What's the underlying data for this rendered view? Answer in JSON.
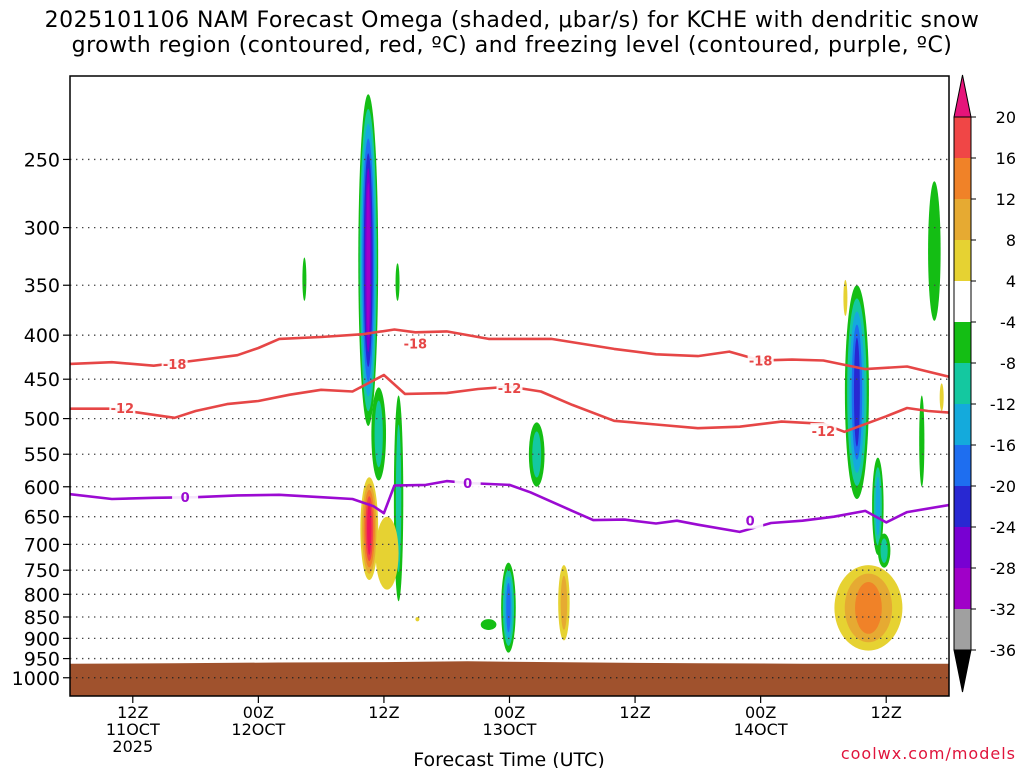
{
  "title_line1": "2025101106 NAM Forecast Omega (shaded, μbar/s) for KCHE with dendritic snow",
  "title_line2": "growth region (contoured, red, ºC) and freezing level (contoured, purple, ºC)",
  "credit": "coolwx.com/models",
  "chart_data": {
    "type": "contour-time-height",
    "xlabel": "Forecast Time (UTC)",
    "ylabel": "",
    "x_range_hours": [
      0,
      84
    ],
    "y_range_hpa": [
      200,
      1050
    ],
    "y_ticks": [
      {
        "value": 250,
        "label": "250"
      },
      {
        "value": 300,
        "label": "300"
      },
      {
        "value": 350,
        "label": "350"
      },
      {
        "value": 400,
        "label": "400"
      },
      {
        "value": 450,
        "label": "450"
      },
      {
        "value": 500,
        "label": "500"
      },
      {
        "value": 550,
        "label": "550"
      },
      {
        "value": 600,
        "label": "600"
      },
      {
        "value": 650,
        "label": "650"
      },
      {
        "value": 700,
        "label": "700"
      },
      {
        "value": 750,
        "label": "750"
      },
      {
        "value": 800,
        "label": "800"
      },
      {
        "value": 850,
        "label": "850"
      },
      {
        "value": 900,
        "label": "900"
      },
      {
        "value": 950,
        "label": "950"
      },
      {
        "value": 1000,
        "label": "1000"
      }
    ],
    "x_ticks": [
      {
        "hour": 6,
        "lines": [
          "12Z",
          "11OCT",
          "2025"
        ]
      },
      {
        "hour": 18,
        "lines": [
          "00Z",
          "12OCT"
        ]
      },
      {
        "hour": 30,
        "lines": [
          "12Z"
        ]
      },
      {
        "hour": 42,
        "lines": [
          "00Z",
          "13OCT"
        ]
      },
      {
        "hour": 54,
        "lines": [
          "12Z"
        ]
      },
      {
        "hour": 66,
        "lines": [
          "00Z",
          "14OCT"
        ]
      },
      {
        "hour": 78,
        "lines": [
          "12Z"
        ]
      }
    ],
    "colorbar": {
      "labels": [
        "20",
        "16",
        "12",
        "8",
        "4",
        "-4",
        "-8",
        "-12",
        "-16",
        "-20",
        "-24",
        "-28",
        "-32",
        "-36"
      ],
      "colors": [
        "#f0145a",
        "#f04646",
        "#f08228",
        "#e6aa32",
        "#e6d232",
        "#ffffff",
        "#14be14",
        "#14c8a0",
        "#14aadc",
        "#1e6ef0",
        "#2828d2",
        "#7800d2",
        "#a000c8",
        "#a0a0a0"
      ],
      "top_arrow_color": "#e6147a",
      "bottom_arrow_color": "#000000"
    },
    "terrain": {
      "color": "#a0522d",
      "surface_hpa": [
        [
          0,
          963
        ],
        [
          10,
          962
        ],
        [
          20,
          960
        ],
        [
          30,
          959
        ],
        [
          38,
          957
        ],
        [
          42,
          958
        ],
        [
          50,
          960
        ],
        [
          60,
          962
        ],
        [
          70,
          963
        ],
        [
          84,
          963
        ]
      ]
    },
    "contours": [
      {
        "name": "dgz-minus18",
        "label": "-18",
        "color": "#e64646",
        "label_points": [
          [
            10,
            432
          ],
          [
            33,
            409
          ],
          [
            66,
            428
          ]
        ],
        "points": [
          [
            0,
            432
          ],
          [
            4,
            430
          ],
          [
            8,
            434
          ],
          [
            12,
            428
          ],
          [
            16,
            422
          ],
          [
            18,
            414
          ],
          [
            20,
            404
          ],
          [
            24,
            402
          ],
          [
            28,
            399
          ],
          [
            31,
            394
          ],
          [
            33,
            397
          ],
          [
            36,
            396
          ],
          [
            40,
            404
          ],
          [
            46,
            404
          ],
          [
            52,
            415
          ],
          [
            56,
            421
          ],
          [
            60,
            423
          ],
          [
            63,
            418
          ],
          [
            66,
            428
          ],
          [
            69,
            427
          ],
          [
            72,
            428
          ],
          [
            76,
            438
          ],
          [
            80,
            435
          ],
          [
            84,
            447
          ]
        ]
      },
      {
        "name": "dgz-minus12",
        "label": "-12",
        "color": "#e64646",
        "label_points": [
          [
            5,
            486
          ],
          [
            42,
            461
          ],
          [
            72,
            517
          ]
        ],
        "points": [
          [
            0,
            487
          ],
          [
            4,
            487
          ],
          [
            8,
            495
          ],
          [
            10,
            499
          ],
          [
            12,
            490
          ],
          [
            15,
            481
          ],
          [
            18,
            477
          ],
          [
            21,
            469
          ],
          [
            24,
            463
          ],
          [
            27,
            465
          ],
          [
            30,
            445
          ],
          [
            32,
            468
          ],
          [
            36,
            467
          ],
          [
            39,
            462
          ],
          [
            42,
            459
          ],
          [
            45,
            465
          ],
          [
            48,
            482
          ],
          [
            52,
            503
          ],
          [
            56,
            508
          ],
          [
            60,
            513
          ],
          [
            64,
            511
          ],
          [
            68,
            504
          ],
          [
            72,
            507
          ],
          [
            74,
            518
          ],
          [
            78,
            497
          ],
          [
            80,
            486
          ],
          [
            82,
            490
          ],
          [
            84,
            492
          ]
        ]
      },
      {
        "name": "freezing-0",
        "label": "0",
        "color": "#9b0ad2",
        "label_points": [
          [
            11,
            617
          ],
          [
            38,
            594
          ],
          [
            65,
            657
          ]
        ],
        "points": [
          [
            0,
            612
          ],
          [
            4,
            620
          ],
          [
            8,
            618
          ],
          [
            12,
            617
          ],
          [
            16,
            614
          ],
          [
            20,
            613
          ],
          [
            24,
            617
          ],
          [
            27,
            620
          ],
          [
            29,
            632
          ],
          [
            30,
            644
          ],
          [
            31,
            598
          ],
          [
            34,
            597
          ],
          [
            36,
            591
          ],
          [
            38,
            594
          ],
          [
            42,
            597
          ],
          [
            44,
            609
          ],
          [
            48,
            640
          ],
          [
            50,
            656
          ],
          [
            53,
            655
          ],
          [
            56,
            662
          ],
          [
            58,
            657
          ],
          [
            60,
            664
          ],
          [
            64,
            677
          ],
          [
            67,
            661
          ],
          [
            70,
            657
          ],
          [
            73,
            650
          ],
          [
            76,
            640
          ],
          [
            78,
            660
          ],
          [
            80,
            642
          ],
          [
            84,
            630
          ]
        ]
      }
    ],
    "shaded_regions": [
      {
        "name": "upward-omega-hour28-upper",
        "hour": 28.5,
        "base_hpa": 510,
        "top_hpa": 210,
        "width_h": 1.9,
        "peak": -28
      },
      {
        "name": "upward-omega-hour28-mid",
        "hour": 29.5,
        "base_hpa": 590,
        "top_hpa": 460,
        "width_h": 1.4,
        "peak": -8
      },
      {
        "name": "upward-omega-hour31",
        "hour": 31.4,
        "base_hpa": 815,
        "top_hpa": 470,
        "width_h": 0.9,
        "peak": -8
      },
      {
        "name": "upward-omega-hour22",
        "hour": 22.4,
        "base_hpa": 365,
        "top_hpa": 325,
        "width_h": 0.3,
        "peak": -4
      },
      {
        "name": "upward-omega-hour31-small",
        "hour": 31.3,
        "base_hpa": 365,
        "top_hpa": 330,
        "width_h": 0.3,
        "peak": -4
      },
      {
        "name": "upward-omega-hour44-mid",
        "hour": 44.6,
        "base_hpa": 600,
        "top_hpa": 505,
        "width_h": 1.5,
        "peak": -8
      },
      {
        "name": "upward-omega-hour41",
        "hour": 41.9,
        "base_hpa": 935,
        "top_hpa": 735,
        "width_h": 1.4,
        "peak": -16
      },
      {
        "name": "upward-omega-hour40",
        "hour": 40.0,
        "base_hpa": 880,
        "top_hpa": 855,
        "width_h": 1.5,
        "peak": -4
      },
      {
        "name": "upward-omega-hour75",
        "hour": 75.2,
        "base_hpa": 620,
        "top_hpa": 350,
        "width_h": 2.3,
        "peak": -20
      },
      {
        "name": "upward-omega-hour77",
        "hour": 77.2,
        "base_hpa": 720,
        "top_hpa": 555,
        "width_h": 1.1,
        "peak": -12
      },
      {
        "name": "upward-omega-hour77-low",
        "hour": 77.8,
        "base_hpa": 745,
        "top_hpa": 680,
        "width_h": 1.2,
        "peak": -8
      },
      {
        "name": "upward-omega-hour82",
        "hour": 82.6,
        "base_hpa": 385,
        "top_hpa": 265,
        "width_h": 1.2,
        "peak": -4
      },
      {
        "name": "upward-omega-hour81",
        "hour": 81.4,
        "base_hpa": 600,
        "top_hpa": 470,
        "width_h": 0.5,
        "peak": -4
      },
      {
        "name": "downward-omega-hour28",
        "hour": 28.6,
        "base_hpa": 770,
        "top_hpa": 585,
        "width_h": 1.7,
        "peak": 20
      },
      {
        "name": "downward-omega-hour30",
        "hour": 30.3,
        "base_hpa": 790,
        "top_hpa": 650,
        "width_h": 2.2,
        "peak": 4
      },
      {
        "name": "downward-omega-hour33",
        "hour": 33.2,
        "base_hpa": 860,
        "top_hpa": 850,
        "width_h": 0.3,
        "peak": 4
      },
      {
        "name": "downward-omega-hour47",
        "hour": 47.2,
        "base_hpa": 905,
        "top_hpa": 740,
        "width_h": 1.1,
        "peak": 8
      },
      {
        "name": "downward-omega-hour75-low",
        "hour": 76.3,
        "base_hpa": 930,
        "top_hpa": 740,
        "width_h": 6.5,
        "peak": 12
      },
      {
        "name": "downward-omega-hour74",
        "hour": 74.1,
        "base_hpa": 380,
        "top_hpa": 345,
        "width_h": 0.3,
        "peak": 4
      },
      {
        "name": "downward-omega-hour83",
        "hour": 83.3,
        "base_hpa": 490,
        "top_hpa": 455,
        "width_h": 0.3,
        "peak": 4
      }
    ]
  }
}
